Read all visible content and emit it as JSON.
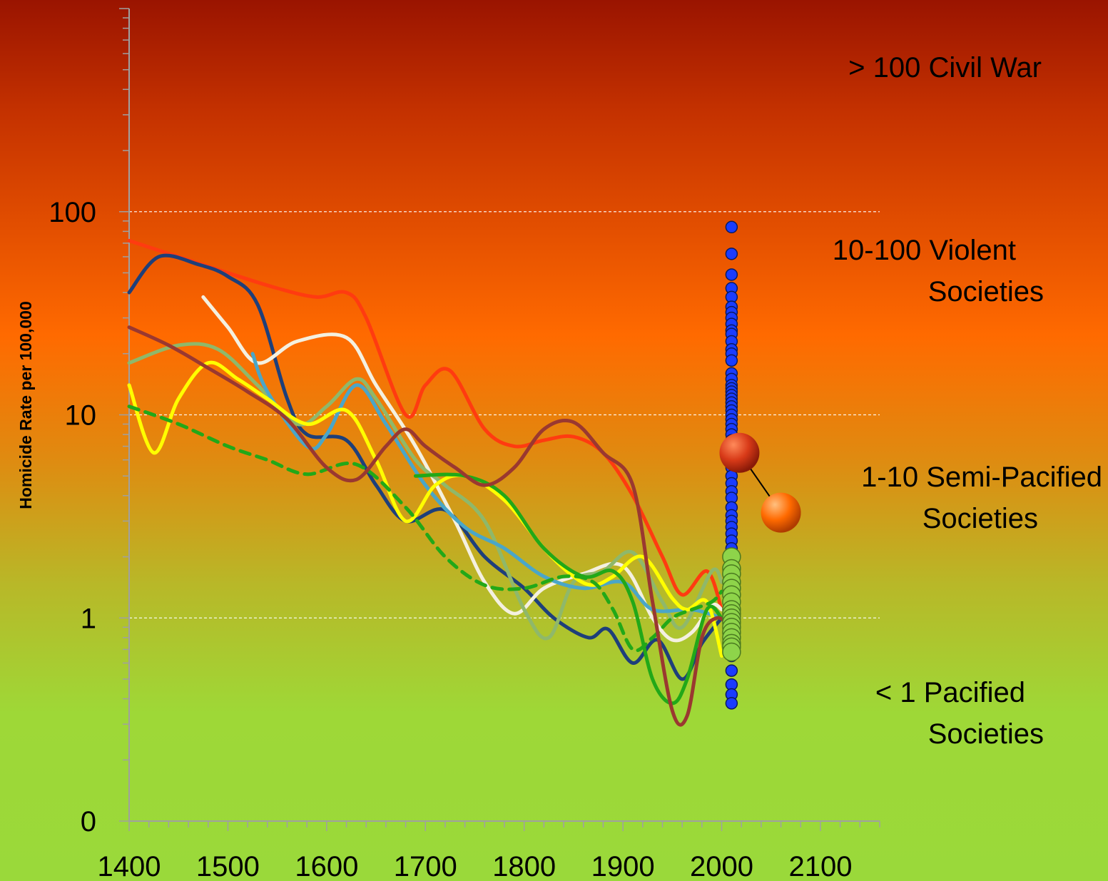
{
  "chart_data": {
    "type": "line",
    "title": "",
    "xlabel": "",
    "ylabel": "Homicide Rate per 100,000",
    "xlim": [
      1400,
      2160
    ],
    "ylim": [
      0.1,
      1000
    ],
    "yscale": "log",
    "grid": "dashed white at 1, 10, 100",
    "x_ticks": [
      1400,
      1500,
      1600,
      1700,
      1800,
      1900,
      2000,
      2100
    ],
    "y_ticks": [
      {
        "label": "0",
        "value": 0.1
      },
      {
        "label": "1",
        "value": 1
      },
      {
        "label": "10",
        "value": 10
      },
      {
        "label": "100",
        "value": 100
      }
    ],
    "bands": [
      {
        "lines": [
          "> 100  Civil War"
        ]
      },
      {
        "lines": [
          "10-100  Violent",
          "Societies"
        ]
      },
      {
        "lines": [
          "1-10  Semi-Pacified",
          "Societies"
        ]
      },
      {
        "lines": [
          "< 1  Pacified",
          "Societies"
        ]
      }
    ],
    "series": [
      {
        "color": "#ff3b10",
        "dashed": false,
        "points": [
          [
            1400,
            72
          ],
          [
            1450,
            60
          ],
          [
            1500,
            50
          ],
          [
            1550,
            42
          ],
          [
            1590,
            38
          ],
          [
            1620,
            40
          ],
          [
            1640,
            30
          ],
          [
            1680,
            10
          ],
          [
            1700,
            14
          ],
          [
            1725,
            16.5
          ],
          [
            1760,
            8.5
          ],
          [
            1790,
            7
          ],
          [
            1820,
            7.5
          ],
          [
            1850,
            7.8
          ],
          [
            1880,
            6.5
          ],
          [
            1910,
            4
          ],
          [
            1940,
            2
          ],
          [
            1960,
            1.3
          ],
          [
            1985,
            1.7
          ],
          [
            2000,
            1.1
          ]
        ]
      },
      {
        "color": "#1e3f7a",
        "dashed": false,
        "points": [
          [
            1400,
            40
          ],
          [
            1430,
            60
          ],
          [
            1470,
            55
          ],
          [
            1500,
            48
          ],
          [
            1530,
            35
          ],
          [
            1560,
            12
          ],
          [
            1580,
            8
          ],
          [
            1620,
            7.5
          ],
          [
            1650,
            4.5
          ],
          [
            1680,
            3
          ],
          [
            1720,
            3.4
          ],
          [
            1760,
            2
          ],
          [
            1800,
            1.4
          ],
          [
            1830,
            1
          ],
          [
            1865,
            0.8
          ],
          [
            1885,
            0.88
          ],
          [
            1910,
            0.6
          ],
          [
            1935,
            0.78
          ],
          [
            1960,
            0.5
          ],
          [
            1980,
            0.75
          ],
          [
            2000,
            1
          ]
        ]
      },
      {
        "color": "#f4f0e0",
        "dashed": false,
        "points": [
          [
            1475,
            38
          ],
          [
            1500,
            27
          ],
          [
            1530,
            18
          ],
          [
            1570,
            23
          ],
          [
            1620,
            24
          ],
          [
            1650,
            14
          ],
          [
            1690,
            7
          ],
          [
            1730,
            3
          ],
          [
            1760,
            1.5
          ],
          [
            1790,
            1.05
          ],
          [
            1820,
            1.4
          ],
          [
            1860,
            1.65
          ],
          [
            1900,
            1.8
          ],
          [
            1930,
            1
          ],
          [
            1950,
            0.78
          ],
          [
            1970,
            0.85
          ],
          [
            1990,
            1.15
          ],
          [
            2000,
            1.1
          ]
        ]
      },
      {
        "color": "#8fb86a",
        "dashed": false,
        "points": [
          [
            1400,
            18
          ],
          [
            1450,
            22
          ],
          [
            1490,
            21
          ],
          [
            1530,
            14
          ],
          [
            1570,
            9
          ],
          [
            1600,
            11
          ],
          [
            1630,
            15
          ],
          [
            1650,
            12
          ],
          [
            1690,
            6
          ],
          [
            1720,
            4.5
          ],
          [
            1760,
            3
          ],
          [
            1800,
            1.1
          ],
          [
            1825,
            0.8
          ],
          [
            1850,
            1.5
          ],
          [
            1880,
            1.7
          ],
          [
            1910,
            2.1
          ],
          [
            1940,
            1.2
          ],
          [
            1960,
            0.9
          ],
          [
            1990,
            1.7
          ],
          [
            2000,
            1.5
          ]
        ]
      },
      {
        "color": "#4aa6c8",
        "dashed": false,
        "points": [
          [
            1525,
            20
          ],
          [
            1540,
            13
          ],
          [
            1580,
            7
          ],
          [
            1600,
            8
          ],
          [
            1630,
            14
          ],
          [
            1660,
            9
          ],
          [
            1700,
            4.5
          ],
          [
            1740,
            2.8
          ],
          [
            1780,
            2.2
          ],
          [
            1820,
            1.6
          ],
          [
            1860,
            1.4
          ],
          [
            1900,
            1.5
          ],
          [
            1930,
            1.1
          ],
          [
            1970,
            1.1
          ],
          [
            2000,
            1
          ]
        ]
      },
      {
        "color": "#ffff00",
        "dashed": false,
        "points": [
          [
            1400,
            14
          ],
          [
            1425,
            6.5
          ],
          [
            1450,
            12
          ],
          [
            1480,
            18
          ],
          [
            1510,
            15
          ],
          [
            1540,
            12
          ],
          [
            1580,
            9
          ],
          [
            1620,
            10.5
          ],
          [
            1650,
            6
          ],
          [
            1680,
            3
          ],
          [
            1710,
            4.5
          ],
          [
            1740,
            5
          ],
          [
            1780,
            3.8
          ],
          [
            1820,
            2.2
          ],
          [
            1850,
            1.6
          ],
          [
            1870,
            1.45
          ],
          [
            1890,
            1.6
          ],
          [
            1920,
            2
          ],
          [
            1950,
            1.25
          ],
          [
            1965,
            1.1
          ],
          [
            1985,
            1.2
          ],
          [
            2000,
            0.65
          ]
        ]
      },
      {
        "color": "#22a818",
        "dashed": false,
        "points": [
          [
            1690,
            5
          ],
          [
            1740,
            5
          ],
          [
            1780,
            4
          ],
          [
            1820,
            2.2
          ],
          [
            1860,
            1.6
          ],
          [
            1890,
            1.7
          ],
          [
            1910,
            1.2
          ],
          [
            1930,
            0.5
          ],
          [
            1950,
            0.38
          ],
          [
            1965,
            0.5
          ],
          [
            1985,
            1.1
          ],
          [
            2000,
            1
          ]
        ]
      },
      {
        "color": "#22a818",
        "dashed": true,
        "points": [
          [
            1400,
            11
          ],
          [
            1450,
            9
          ],
          [
            1500,
            7
          ],
          [
            1540,
            6
          ],
          [
            1580,
            5.1
          ],
          [
            1630,
            5.7
          ],
          [
            1680,
            3.5
          ],
          [
            1720,
            2
          ],
          [
            1760,
            1.45
          ],
          [
            1800,
            1.4
          ],
          [
            1840,
            1.6
          ],
          [
            1870,
            1.5
          ],
          [
            1890,
            1.1
          ],
          [
            1910,
            0.7
          ],
          [
            1930,
            0.8
          ],
          [
            1950,
            1
          ],
          [
            1970,
            1.1
          ],
          [
            1990,
            1.2
          ],
          [
            2000,
            1.35
          ]
        ]
      },
      {
        "color": "#9a3830",
        "dashed": false,
        "points": [
          [
            1400,
            27
          ],
          [
            1440,
            22
          ],
          [
            1480,
            17
          ],
          [
            1520,
            13
          ],
          [
            1560,
            9.5
          ],
          [
            1600,
            5.5
          ],
          [
            1630,
            4.8
          ],
          [
            1660,
            7
          ],
          [
            1680,
            8.5
          ],
          [
            1700,
            7
          ],
          [
            1730,
            5.5
          ],
          [
            1760,
            4.5
          ],
          [
            1790,
            5.5
          ],
          [
            1820,
            8.5
          ],
          [
            1850,
            9.2
          ],
          [
            1880,
            6.5
          ],
          [
            1910,
            4.5
          ],
          [
            1930,
            1.2
          ],
          [
            1950,
            0.35
          ],
          [
            1965,
            0.33
          ],
          [
            1980,
            0.8
          ],
          [
            1995,
            1
          ],
          [
            2010,
            0.9
          ]
        ]
      }
    ],
    "scatter_blue": {
      "color": "#1a3cff",
      "x": 2010,
      "values": [
        84,
        62,
        49,
        42,
        38,
        34,
        32,
        30,
        28,
        26,
        25,
        23,
        21,
        20,
        18.5,
        16,
        15,
        14,
        13.5,
        13,
        12.5,
        12,
        11.5,
        11,
        10.5,
        10,
        9.5,
        9,
        8.5,
        8,
        7.5,
        7,
        6.5,
        6,
        5.5,
        5,
        4.6,
        4.2,
        3.9,
        3.5,
        3.2,
        3.0,
        2.8,
        2.6,
        2.4,
        2.2,
        2.0,
        1.9,
        1.8,
        1.7,
        1.6,
        1.5,
        1.4,
        1.3,
        1.2,
        1.1,
        1.0,
        0.95,
        0.9,
        0.85,
        0.8,
        0.75,
        0.7,
        0.65,
        0.55,
        0.47,
        0.42,
        0.38
      ]
    },
    "scatter_green": {
      "color": "#8ed44a",
      "x": 2010,
      "values": [
        2.0,
        1.75,
        1.65,
        1.5,
        1.4,
        1.3,
        1.2,
        1.1,
        1.05,
        1.0,
        0.95,
        0.9,
        0.85,
        0.8,
        0.75,
        0.72,
        0.68
      ]
    },
    "highlight_points": [
      {
        "year": 2018,
        "value": 6.5,
        "color": "#d83a18"
      },
      {
        "year": 2060,
        "value": 3.3,
        "color": "#ff6a00"
      }
    ]
  }
}
